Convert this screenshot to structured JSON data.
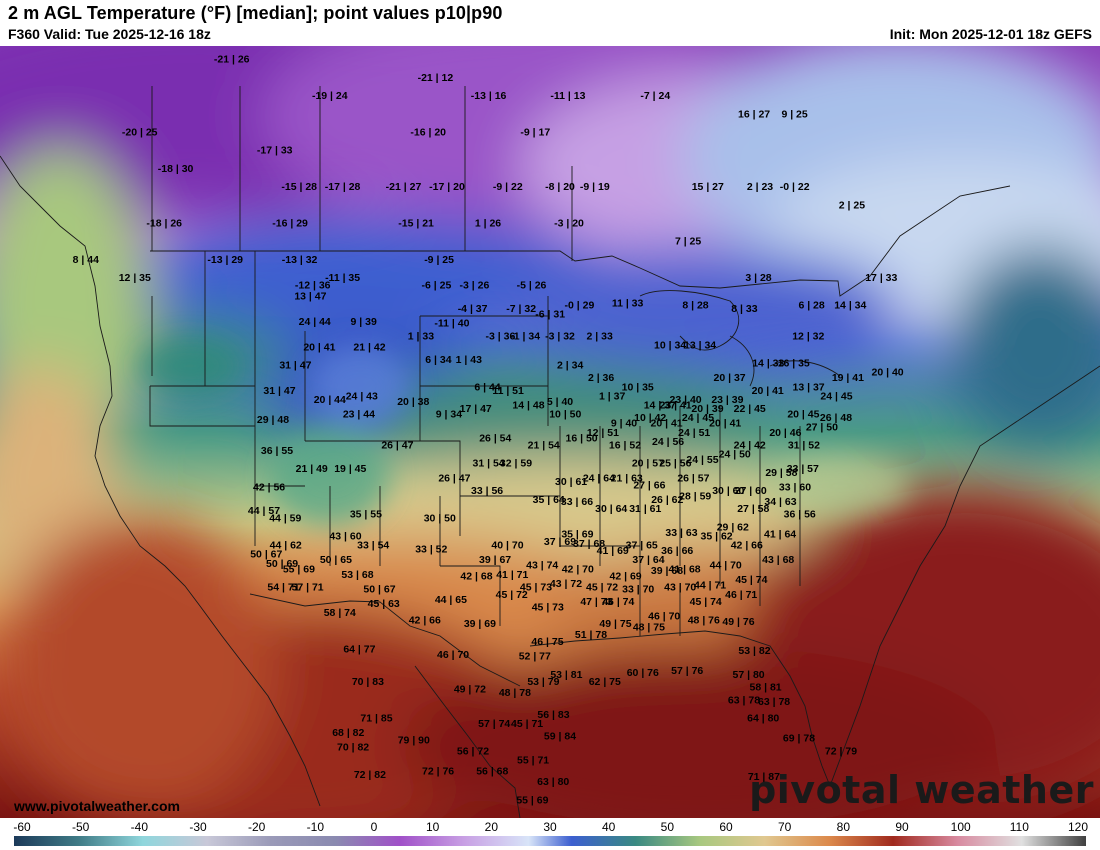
{
  "header": {
    "title": "2 m AGL Temperature (°F) [median]; point values p10|p90",
    "valid": "F360 Valid: Tue 2025-12-16 18z",
    "init": "Init: Mon 2025-12-01 18z GEFS"
  },
  "footer": {
    "website": "www.pivotalweather.com",
    "brand": "pivotal weather"
  },
  "legend": {
    "ticks": [
      "-60",
      "-50",
      "-40",
      "-30",
      "-20",
      "-10",
      "0",
      "10",
      "20",
      "30",
      "40",
      "50",
      "60",
      "70",
      "80",
      "90",
      "100",
      "110",
      "120"
    ]
  },
  "points": [
    {
      "v": "-21 | 26",
      "x": -140,
      "y": 62
    },
    {
      "v": "-21 | 12",
      "x": -113,
      "y": 61
    },
    {
      "v": "-19 | 24",
      "x": -126,
      "y": 60
    },
    {
      "v": "-13 | 16",
      "x": -106,
      "y": 60
    },
    {
      "v": "-11 | 13",
      "x": -96,
      "y": 60
    },
    {
      "v": "-7 | 24",
      "x": -85,
      "y": 60
    },
    {
      "v": "16 | 27",
      "x": -73,
      "y": 59
    },
    {
      "v": "9 | 25",
      "x": -68,
      "y": 59
    },
    {
      "v": "-16 | 20",
      "x": -113,
      "y": 58
    },
    {
      "v": "-9 | 17",
      "x": -100,
      "y": 58
    },
    {
      "v": "-20 | 25",
      "x": -148,
      "y": 58
    },
    {
      "v": "-17 | 33",
      "x": -131,
      "y": 57
    },
    {
      "v": "-18 | 30",
      "x": -142,
      "y": 56
    },
    {
      "v": "-15 | 28",
      "x": -127,
      "y": 55
    },
    {
      "v": "-17 | 28",
      "x": -122,
      "y": 55
    },
    {
      "v": "-21 | 27",
      "x": -115,
      "y": 55
    },
    {
      "v": "-17 | 20",
      "x": -110,
      "y": 55
    },
    {
      "v": "-9 | 22",
      "x": -103,
      "y": 55
    },
    {
      "v": "-8 | 20",
      "x": -97,
      "y": 55
    },
    {
      "v": "-9 | 19",
      "x": -93,
      "y": 55
    },
    {
      "v": "15 | 27",
      "x": -80,
      "y": 55
    },
    {
      "v": "2 | 23",
      "x": -74,
      "y": 55
    },
    {
      "v": "-0 | 22",
      "x": -70,
      "y": 55
    },
    {
      "v": "2 | 25",
      "x": -64,
      "y": 54
    },
    {
      "v": "-16 | 29",
      "x": -127,
      "y": 53
    },
    {
      "v": "-15 | 21",
      "x": -113,
      "y": 53
    },
    {
      "v": "1 | 26",
      "x": -105,
      "y": 53
    },
    {
      "v": "-3 | 20",
      "x": -96,
      "y": 53
    },
    {
      "v": "-18 | 26",
      "x": -141,
      "y": 53
    },
    {
      "v": "7 | 25",
      "x": -83,
      "y": 52
    },
    {
      "v": "8 | 44",
      "x": -148,
      "y": 51
    },
    {
      "v": "-13 | 32",
      "x": -125,
      "y": 51
    },
    {
      "v": "-13 | 29",
      "x": -133,
      "y": 51
    },
    {
      "v": "-9 | 25",
      "x": -110,
      "y": 51
    },
    {
      "v": "12 | 35",
      "x": -142,
      "y": 50
    },
    {
      "v": "-11 | 35",
      "x": -120,
      "y": 50
    },
    {
      "v": "-12 | 36",
      "x": -123,
      "y": 49.6
    },
    {
      "v": "-6 | 25",
      "x": -110,
      "y": 49.6
    },
    {
      "v": "-3 | 26",
      "x": -106,
      "y": 49.6
    },
    {
      "v": "-5 | 26",
      "x": -100,
      "y": 49.6
    },
    {
      "v": "3 | 28",
      "x": -76,
      "y": 50
    },
    {
      "v": "17 | 33",
      "x": -63,
      "y": 50
    },
    {
      "v": "13 | 47",
      "x": -123,
      "y": 49
    },
    {
      "v": "11 | 33",
      "x": -90,
      "y": 48.6
    },
    {
      "v": "-0 | 29",
      "x": -95,
      "y": 48.5
    },
    {
      "v": "8 | 28",
      "x": -83,
      "y": 48.5
    },
    {
      "v": "8 | 33",
      "x": -78,
      "y": 48.3
    },
    {
      "v": "6 | 28",
      "x": -71,
      "y": 48.5
    },
    {
      "v": "14 | 34",
      "x": -67,
      "y": 48.5
    },
    {
      "v": "-4 | 37",
      "x": -106,
      "y": 48.3
    },
    {
      "v": "-7 | 32",
      "x": -101,
      "y": 48.3
    },
    {
      "v": "-6 | 31",
      "x": -98,
      "y": 48
    },
    {
      "v": "24 | 44",
      "x": -122,
      "y": 47.6
    },
    {
      "v": "9 | 39",
      "x": -117,
      "y": 47.6
    },
    {
      "v": "-11 | 40",
      "x": -108,
      "y": 47.5
    },
    {
      "v": "1 | 33",
      "x": -111,
      "y": 46.8
    },
    {
      "v": "-3 | 36",
      "x": -103,
      "y": 46.8
    },
    {
      "v": "-1 | 34",
      "x": -100.5,
      "y": 46.8
    },
    {
      "v": "-3 | 32",
      "x": -97,
      "y": 46.8
    },
    {
      "v": "2 | 33",
      "x": -93,
      "y": 46.8
    },
    {
      "v": "12 | 32",
      "x": -72,
      "y": 46.8
    },
    {
      "v": "20 | 41",
      "x": -121,
      "y": 46.2
    },
    {
      "v": "21 | 42",
      "x": -116,
      "y": 46.2
    },
    {
      "v": "10 | 34",
      "x": -86,
      "y": 46.3
    },
    {
      "v": "13 | 34",
      "x": -83,
      "y": 46.3
    },
    {
      "v": "6 | 34",
      "x": -109,
      "y": 45.5
    },
    {
      "v": "1 | 43",
      "x": -106,
      "y": 45.5
    },
    {
      "v": "2 | 34",
      "x": -96,
      "y": 45.2
    },
    {
      "v": "14 | 33",
      "x": -76.5,
      "y": 45.3
    },
    {
      "v": "16 | 35",
      "x": -74,
      "y": 45.3
    },
    {
      "v": "31 | 47",
      "x": -123,
      "y": 45.2
    },
    {
      "v": "2 | 36",
      "x": -93,
      "y": 44.5
    },
    {
      "v": "20 | 37",
      "x": -80.5,
      "y": 44.5
    },
    {
      "v": "19 | 41",
      "x": -69,
      "y": 44.5
    },
    {
      "v": "20 | 40",
      "x": -65,
      "y": 44.8
    },
    {
      "v": "10 | 35",
      "x": -89.5,
      "y": 44
    },
    {
      "v": "13 | 37",
      "x": -73,
      "y": 44
    },
    {
      "v": "6 | 44",
      "x": -104,
      "y": 44
    },
    {
      "v": "11 | 51",
      "x": -102,
      "y": 43.8
    },
    {
      "v": "20 | 41",
      "x": -77,
      "y": 43.8
    },
    {
      "v": "1 | 37",
      "x": -92,
      "y": 43.5
    },
    {
      "v": "31 | 47",
      "x": -124,
      "y": 43.8
    },
    {
      "v": "24 | 43",
      "x": -116,
      "y": 43.5
    },
    {
      "v": "20 | 44",
      "x": -119,
      "y": 43.3
    },
    {
      "v": "23 | 40",
      "x": -85,
      "y": 43.3
    },
    {
      "v": "23 | 39",
      "x": -81,
      "y": 43.3
    },
    {
      "v": "24 | 45",
      "x": -70.5,
      "y": 43.5
    },
    {
      "v": "20 | 38",
      "x": -111,
      "y": 43.2
    },
    {
      "v": "5 | 40",
      "x": -97,
      "y": 43.2
    },
    {
      "v": "14 | 48",
      "x": -100,
      "y": 43
    },
    {
      "v": "14 | 37",
      "x": -87.5,
      "y": 43
    },
    {
      "v": "23 | 41",
      "x": -86,
      "y": 43
    },
    {
      "v": "20 | 39",
      "x": -83,
      "y": 42.8
    },
    {
      "v": "22 | 45",
      "x": -79,
      "y": 42.8
    },
    {
      "v": "17 | 47",
      "x": -105,
      "y": 42.8
    },
    {
      "v": "9 | 34",
      "x": -107.5,
      "y": 42.5
    },
    {
      "v": "23 | 44",
      "x": -116,
      "y": 42.5
    },
    {
      "v": "10 | 50",
      "x": -96.5,
      "y": 42.5
    },
    {
      "v": "10 | 42",
      "x": -88.5,
      "y": 42.3
    },
    {
      "v": "24 | 45",
      "x": -84,
      "y": 42.3
    },
    {
      "v": "20 | 45",
      "x": -74,
      "y": 42.5
    },
    {
      "v": "26 | 48",
      "x": -71,
      "y": 42.3
    },
    {
      "v": "29 | 48",
      "x": -124,
      "y": 42.2
    },
    {
      "v": "9 | 40",
      "x": -91,
      "y": 42
    },
    {
      "v": "20 | 41",
      "x": -87,
      "y": 42
    },
    {
      "v": "20 | 41",
      "x": -81.5,
      "y": 42
    },
    {
      "v": "27 | 50",
      "x": -72.5,
      "y": 41.8
    },
    {
      "v": "12 | 51",
      "x": -93,
      "y": 41.5
    },
    {
      "v": "24 | 51",
      "x": -84.5,
      "y": 41.5
    },
    {
      "v": "20 | 46",
      "x": -76,
      "y": 41.5
    },
    {
      "v": "16 | 50",
      "x": -95,
      "y": 41.2
    },
    {
      "v": "24 | 56",
      "x": -87,
      "y": 41
    },
    {
      "v": "26 | 54",
      "x": -103,
      "y": 41.2
    },
    {
      "v": "26 | 47",
      "x": -112,
      "y": 40.8
    },
    {
      "v": "21 | 54",
      "x": -98.5,
      "y": 40.8
    },
    {
      "v": "16 | 52",
      "x": -91,
      "y": 40.8
    },
    {
      "v": "24 | 42",
      "x": -79.5,
      "y": 40.8
    },
    {
      "v": "31 | 52",
      "x": -74.5,
      "y": 40.8
    },
    {
      "v": "36 | 55",
      "x": -123,
      "y": 40.5
    },
    {
      "v": "24 | 50",
      "x": -81,
      "y": 40.3
    },
    {
      "v": "20 | 57",
      "x": -89,
      "y": 39.8
    },
    {
      "v": "25 | 56",
      "x": -86.5,
      "y": 39.8
    },
    {
      "v": "24 | 55",
      "x": -84,
      "y": 40
    },
    {
      "v": "31 | 54",
      "x": -103.5,
      "y": 39.8
    },
    {
      "v": "32 | 59",
      "x": -101,
      "y": 39.8
    },
    {
      "v": "21 | 49",
      "x": -119.5,
      "y": 39.5
    },
    {
      "v": "19 | 45",
      "x": -116,
      "y": 39.5
    },
    {
      "v": "33 | 57",
      "x": -75,
      "y": 39.5
    },
    {
      "v": "29 | 58",
      "x": -77,
      "y": 39.3
    },
    {
      "v": "26 | 47",
      "x": -106.5,
      "y": 39
    },
    {
      "v": "24 | 64",
      "x": -93.5,
      "y": 39
    },
    {
      "v": "21 | 63",
      "x": -91,
      "y": 39
    },
    {
      "v": "26 | 57",
      "x": -85,
      "y": 39
    },
    {
      "v": "30 | 61",
      "x": -96,
      "y": 38.8
    },
    {
      "v": "27 | 66",
      "x": -89,
      "y": 38.6
    },
    {
      "v": "33 | 60",
      "x": -76,
      "y": 38.5
    },
    {
      "v": "42 | 56",
      "x": -123,
      "y": 38.5
    },
    {
      "v": "30 | 60",
      "x": -82,
      "y": 38.3
    },
    {
      "v": "27 | 60",
      "x": -80,
      "y": 38.3
    },
    {
      "v": "33 | 56",
      "x": -103.5,
      "y": 38.3
    },
    {
      "v": "28 | 59",
      "x": -85,
      "y": 38
    },
    {
      "v": "26 | 62",
      "x": -87.5,
      "y": 37.8
    },
    {
      "v": "35 | 64",
      "x": -98,
      "y": 37.8
    },
    {
      "v": "33 | 66",
      "x": -95.5,
      "y": 37.7
    },
    {
      "v": "34 | 63",
      "x": -77.5,
      "y": 37.7
    },
    {
      "v": "44 | 57",
      "x": -123,
      "y": 37.2
    },
    {
      "v": "30 | 64",
      "x": -92.5,
      "y": 37.3
    },
    {
      "v": "31 | 61",
      "x": -89.5,
      "y": 37.3
    },
    {
      "v": "27 | 58",
      "x": -80,
      "y": 37.3
    },
    {
      "v": "36 | 56",
      "x": -76,
      "y": 37
    },
    {
      "v": "35 | 55",
      "x": -114,
      "y": 37
    },
    {
      "v": "30 | 50",
      "x": -107.5,
      "y": 36.8
    },
    {
      "v": "44 | 59",
      "x": -121,
      "y": 36.8
    },
    {
      "v": "29 | 62",
      "x": -82,
      "y": 36.3
    },
    {
      "v": "33 | 63",
      "x": -86.5,
      "y": 36
    },
    {
      "v": "35 | 62",
      "x": -83.5,
      "y": 35.8
    },
    {
      "v": "35 | 69",
      "x": -95.5,
      "y": 35.9
    },
    {
      "v": "41 | 64",
      "x": -78,
      "y": 35.9
    },
    {
      "v": "43 | 60",
      "x": -115.5,
      "y": 35.8
    },
    {
      "v": "37 | 69",
      "x": -97,
      "y": 35.5
    },
    {
      "v": "37 | 68",
      "x": -94.5,
      "y": 35.4
    },
    {
      "v": "33 | 54",
      "x": -113,
      "y": 35.3
    },
    {
      "v": "33 | 52",
      "x": -108,
      "y": 35.1
    },
    {
      "v": "40 | 70",
      "x": -101.5,
      "y": 35.3
    },
    {
      "v": "37 | 65",
      "x": -90,
      "y": 35.3
    },
    {
      "v": "42 | 66",
      "x": -81,
      "y": 35.3
    },
    {
      "v": "44 | 62",
      "x": -120.5,
      "y": 35.3
    },
    {
      "v": "41 | 69",
      "x": -92.5,
      "y": 35
    },
    {
      "v": "36 | 66",
      "x": -87,
      "y": 35
    },
    {
      "v": "50 | 67",
      "x": -122,
      "y": 34.8
    },
    {
      "v": "43 | 68",
      "x": -78.5,
      "y": 34.5
    },
    {
      "v": "50 | 65",
      "x": -116,
      "y": 34.5
    },
    {
      "v": "39 | 67",
      "x": -102.5,
      "y": 34.5
    },
    {
      "v": "37 | 64",
      "x": -89.5,
      "y": 34.5
    },
    {
      "v": "50 | 69",
      "x": -120.5,
      "y": 34.3
    },
    {
      "v": "43 | 74",
      "x": -98.5,
      "y": 34.2
    },
    {
      "v": "42 | 70",
      "x": -95.5,
      "y": 34
    },
    {
      "v": "44 | 70",
      "x": -83,
      "y": 34.2
    },
    {
      "v": "41 | 68",
      "x": -86.5,
      "y": 34
    },
    {
      "v": "39 | 68",
      "x": -88,
      "y": 33.9
    },
    {
      "v": "55 | 69",
      "x": -119,
      "y": 34
    },
    {
      "v": "53 | 68",
      "x": -114,
      "y": 33.7
    },
    {
      "v": "41 | 71",
      "x": -101,
      "y": 33.7
    },
    {
      "v": "42 | 68",
      "x": -104,
      "y": 33.6
    },
    {
      "v": "42 | 69",
      "x": -91.5,
      "y": 33.6
    },
    {
      "v": "45 | 74",
      "x": -81,
      "y": 33.4
    },
    {
      "v": "54 | 71",
      "x": -120,
      "y": 33
    },
    {
      "v": "57 | 71",
      "x": -118,
      "y": 33
    },
    {
      "v": "45 | 73",
      "x": -99,
      "y": 33
    },
    {
      "v": "43 | 72",
      "x": -96.5,
      "y": 33.2
    },
    {
      "v": "45 | 72",
      "x": -93.5,
      "y": 33
    },
    {
      "v": "43 | 70",
      "x": -87,
      "y": 33
    },
    {
      "v": "44 | 71",
      "x": -84.5,
      "y": 33.1
    },
    {
      "v": "33 | 70",
      "x": -90.5,
      "y": 32.9
    },
    {
      "v": "50 | 67",
      "x": -112,
      "y": 32.9
    },
    {
      "v": "46 | 71",
      "x": -82,
      "y": 32.6
    },
    {
      "v": "45 | 72",
      "x": -101,
      "y": 32.6
    },
    {
      "v": "44 | 65",
      "x": -106,
      "y": 32.3
    },
    {
      "v": "45 | 74",
      "x": -85,
      "y": 32.2
    },
    {
      "v": "45 | 63",
      "x": -111.5,
      "y": 32.1
    },
    {
      "v": "47 | 73",
      "x": -94,
      "y": 32.2
    },
    {
      "v": "46 | 74",
      "x": -92.2,
      "y": 32.2
    },
    {
      "v": "45 | 73",
      "x": -98,
      "y": 31.9
    },
    {
      "v": "58 | 74",
      "x": -115,
      "y": 31.6
    },
    {
      "v": "46 | 70",
      "x": -88.5,
      "y": 31.4
    },
    {
      "v": "48 | 76",
      "x": -85.3,
      "y": 31.2
    },
    {
      "v": "49 | 76",
      "x": -82.5,
      "y": 31.1
    },
    {
      "v": "42 | 66",
      "x": -108,
      "y": 31.2
    },
    {
      "v": "39 | 69",
      "x": -103.5,
      "y": 31
    },
    {
      "v": "49 | 75",
      "x": -92.5,
      "y": 31
    },
    {
      "v": "48 | 75",
      "x": -89.8,
      "y": 30.8
    },
    {
      "v": "51 | 78",
      "x": -94.5,
      "y": 30.4
    },
    {
      "v": "46 | 75",
      "x": -98,
      "y": 30
    },
    {
      "v": "53 | 82",
      "x": -81.5,
      "y": 29.5
    },
    {
      "v": "64 | 77",
      "x": -113,
      "y": 29.6
    },
    {
      "v": "52 | 77",
      "x": -99,
      "y": 29.2
    },
    {
      "v": "46 | 70",
      "x": -105.5,
      "y": 29.3
    },
    {
      "v": "60 | 76",
      "x": -90.5,
      "y": 28.3
    },
    {
      "v": "57 | 76",
      "x": -87,
      "y": 28.4
    },
    {
      "v": "57 | 80",
      "x": -82.2,
      "y": 28.2
    },
    {
      "v": "53 | 81",
      "x": -96.5,
      "y": 28.2
    },
    {
      "v": "53 | 79",
      "x": -98.3,
      "y": 27.8
    },
    {
      "v": "62 | 75",
      "x": -93.5,
      "y": 27.8
    },
    {
      "v": "58 | 81",
      "x": -81,
      "y": 27.5
    },
    {
      "v": "70 | 83",
      "x": -112,
      "y": 27.8
    },
    {
      "v": "49 | 72",
      "x": -104,
      "y": 27.4
    },
    {
      "v": "48 | 78",
      "x": -100.5,
      "y": 27.2
    },
    {
      "v": "63 | 78",
      "x": -82.8,
      "y": 26.8
    },
    {
      "v": "63 | 78",
      "x": -80.5,
      "y": 26.7
    },
    {
      "v": "56 | 83",
      "x": -97.5,
      "y": 26
    },
    {
      "v": "64 | 80",
      "x": -81.5,
      "y": 25.8
    },
    {
      "v": "71 | 85",
      "x": -111,
      "y": 25.8
    },
    {
      "v": "57 | 74",
      "x": -102,
      "y": 25.5
    },
    {
      "v": "45 | 71",
      "x": -99.5,
      "y": 25.5
    },
    {
      "v": "68 | 82",
      "x": -113,
      "y": 25
    },
    {
      "v": "59 | 84",
      "x": -97,
      "y": 24.8
    },
    {
      "v": "79 | 90",
      "x": -108,
      "y": 24.6
    },
    {
      "v": "69 | 78",
      "x": -79,
      "y": 24.7
    },
    {
      "v": "70 | 82",
      "x": -112.5,
      "y": 24.2
    },
    {
      "v": "56 | 72",
      "x": -103.5,
      "y": 24
    },
    {
      "v": "72 | 79",
      "x": -76,
      "y": 24
    },
    {
      "v": "55 | 71",
      "x": -99,
      "y": 23.5
    },
    {
      "v": "72 | 76",
      "x": -106,
      "y": 22.9
    },
    {
      "v": "56 | 68",
      "x": -102,
      "y": 22.9
    },
    {
      "v": "72 | 82",
      "x": -111,
      "y": 22.7
    },
    {
      "v": "63 | 80",
      "x": -97.5,
      "y": 22.3
    },
    {
      "v": "71 | 87",
      "x": -82,
      "y": 22.6
    },
    {
      "v": "55 | 69",
      "x": -99,
      "y": 21.3
    }
  ]
}
